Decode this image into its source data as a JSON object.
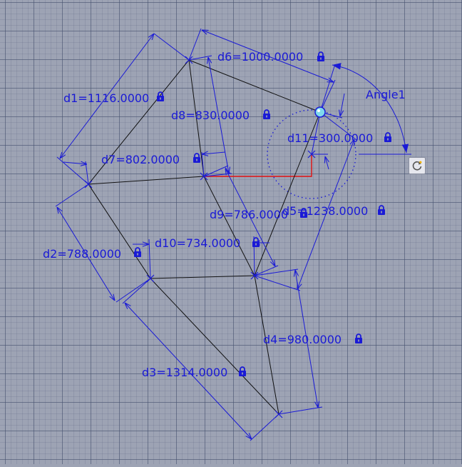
{
  "dimensions": [
    {
      "id": "d1",
      "text": "d1=1116.0000"
    },
    {
      "id": "d2",
      "text": "d2=788.0000"
    },
    {
      "id": "d3",
      "text": "d3=1314.0000"
    },
    {
      "id": "d4",
      "text": "d4=980.0000"
    },
    {
      "id": "d5",
      "text": "d5=1238.0000"
    },
    {
      "id": "d6",
      "text": "d6=1000.0000"
    },
    {
      "id": "d7",
      "text": "d7=802.0000"
    },
    {
      "id": "d8",
      "text": "d8=830.0000"
    },
    {
      "id": "d9",
      "text": "d9=786.0000"
    },
    {
      "id": "d10",
      "text": "d10=734.0000"
    },
    {
      "id": "d11",
      "text": "d11=300.0000"
    }
  ],
  "angle_label": "Angle1",
  "colors": {
    "background": "#9da3b4",
    "dimension": "#1a1ad6",
    "edge": "#111111",
    "constraint_red": "#e01010",
    "handle": "#7fd8ec"
  },
  "icons": {
    "lock": "lock-icon",
    "refresh": "refresh-icon"
  }
}
